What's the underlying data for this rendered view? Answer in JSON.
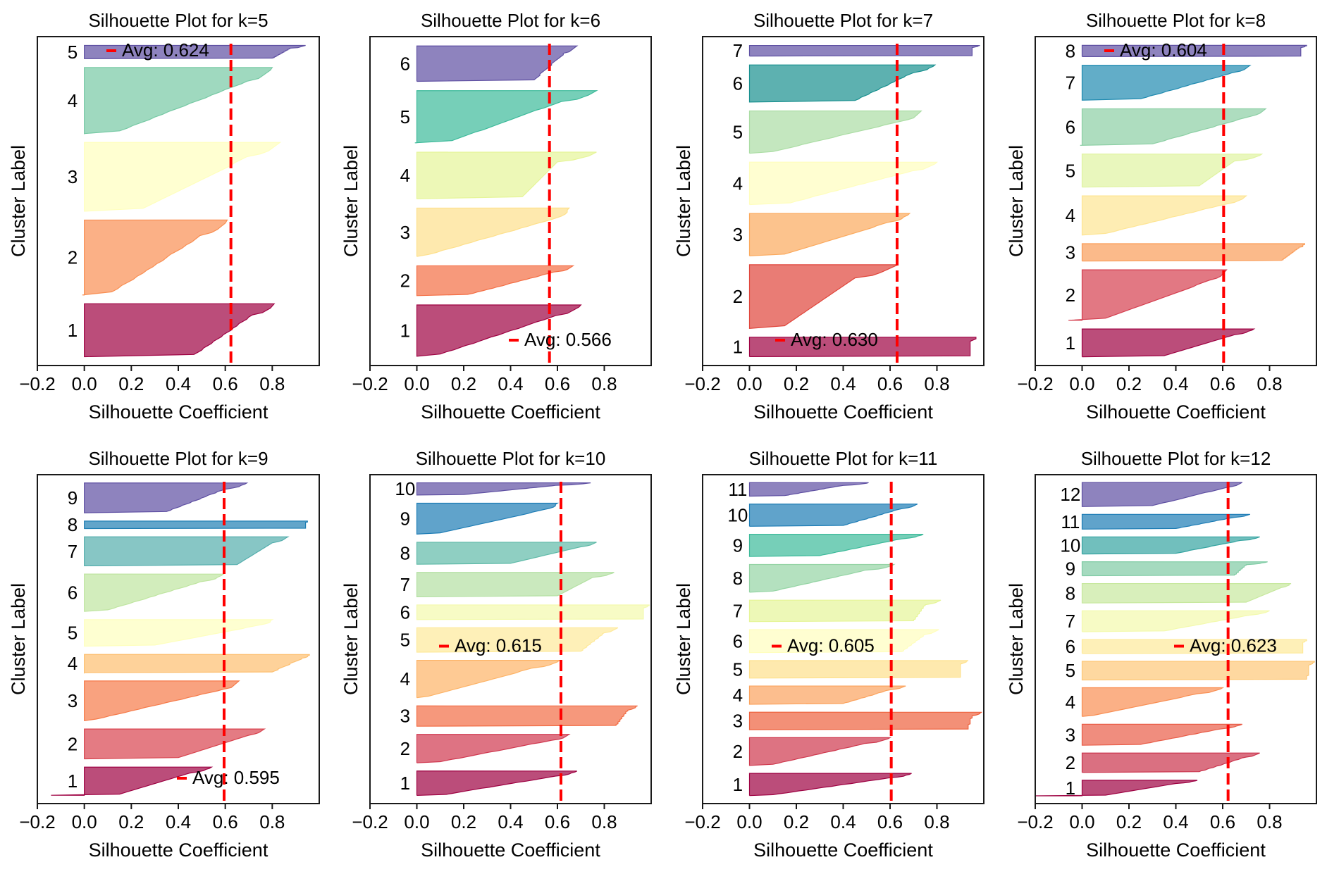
{
  "figure": {
    "shared_xlabel": "Silhouette Coefficient",
    "shared_ylabel": "Cluster Label",
    "avg_line_color": "#ff0000"
  },
  "chart_data": [
    {
      "type": "area",
      "title": "Silhouette Plot for k=5",
      "xlabel": "Silhouette Coefficient",
      "ylabel": "Cluster Label",
      "xlim": [
        -0.2,
        1.0
      ],
      "xticks": [
        "−0.2",
        "0.0",
        "0.2",
        "0.4",
        "0.6",
        "0.8"
      ],
      "xtick_values": [
        -0.2,
        0.0,
        0.2,
        0.4,
        0.6,
        0.8
      ],
      "avg": 0.624,
      "legend_label": "Avg: 0.624",
      "legend_loc": "upper center",
      "clusters": [
        {
          "label": "1",
          "size": 60,
          "max": 0.81,
          "knee": 0.72,
          "low": 0.47,
          "min": 0.0,
          "color": "#9e0142"
        },
        {
          "label": "2",
          "size": 85,
          "max": 0.61,
          "knee": 0.5,
          "low": 0.12,
          "min": -0.01,
          "color": "#f98e52"
        },
        {
          "label": "3",
          "size": 78,
          "max": 0.83,
          "knee": 0.7,
          "low": 0.25,
          "min": 0.0,
          "color": "#ffffbe"
        },
        {
          "label": "4",
          "size": 75,
          "max": 0.8,
          "knee": 0.7,
          "low": 0.15,
          "min": 0.0,
          "color": "#76c9a4"
        },
        {
          "label": "5",
          "size": 15,
          "max": 0.94,
          "knee": 0.88,
          "low": 0.8,
          "min": 0.0,
          "color": "#5e4fa2"
        }
      ]
    },
    {
      "type": "area",
      "title": "Silhouette Plot for k=6",
      "xlabel": "Silhouette Coefficient",
      "ylabel": "Cluster Label",
      "xlim": [
        -0.2,
        1.0
      ],
      "xticks": [
        "−0.2",
        "0.0",
        "0.2",
        "0.4",
        "0.6",
        "0.8"
      ],
      "xtick_values": [
        -0.2,
        0.0,
        0.2,
        0.4,
        0.6,
        0.8
      ],
      "avg": 0.566,
      "legend_label": "Avg: 0.566",
      "legend_loc": "lower right",
      "clusters": [
        {
          "label": "1",
          "size": 55,
          "max": 0.7,
          "knee": 0.6,
          "low": 0.1,
          "min": 0.0,
          "color": "#9e0142"
        },
        {
          "label": "2",
          "size": 32,
          "max": 0.67,
          "knee": 0.59,
          "low": 0.22,
          "min": 0.0,
          "color": "#f46d43"
        },
        {
          "label": "3",
          "size": 52,
          "max": 0.65,
          "knee": 0.6,
          "low": 0.05,
          "min": 0.0,
          "color": "#fee08b"
        },
        {
          "label": "4",
          "size": 50,
          "max": 0.77,
          "knee": 0.6,
          "low": 0.45,
          "min": 0.0,
          "color": "#e6f598"
        },
        {
          "label": "5",
          "size": 56,
          "max": 0.77,
          "knee": 0.62,
          "low": 0.15,
          "min": -0.01,
          "color": "#3cba9a"
        },
        {
          "label": "6",
          "size": 38,
          "max": 0.68,
          "knee": 0.63,
          "low": 0.5,
          "min": 0.0,
          "color": "#5e4fa2"
        }
      ]
    },
    {
      "type": "area",
      "title": "Silhouette Plot for k=7",
      "xlabel": "Silhouette Coefficient",
      "ylabel": "Cluster Label",
      "xlim": [
        -0.2,
        1.0
      ],
      "xticks": [
        "−0.2",
        "0.0",
        "0.2",
        "0.4",
        "0.6",
        "0.8"
      ],
      "xtick_values": [
        -0.2,
        0.0,
        0.2,
        0.4,
        0.6,
        0.8
      ],
      "avg": 0.63,
      "legend_label": "Avg: 0.630",
      "legend_loc": "lower center",
      "clusters": [
        {
          "label": "1",
          "size": 22,
          "max": 0.97,
          "knee": 0.94,
          "low": 0.94,
          "min": 0.0,
          "color": "#9e0142"
        },
        {
          "label": "2",
          "size": 72,
          "max": 0.63,
          "knee": 0.45,
          "low": 0.15,
          "min": 0.0,
          "color": "#e0453b"
        },
        {
          "label": "3",
          "size": 48,
          "max": 0.68,
          "knee": 0.6,
          "low": 0.15,
          "min": 0.0,
          "color": "#fba95c"
        },
        {
          "label": "4",
          "size": 48,
          "max": 0.8,
          "knee": 0.7,
          "low": 0.17,
          "min": 0.0,
          "color": "#fffebe"
        },
        {
          "label": "5",
          "size": 48,
          "max": 0.73,
          "knee": 0.68,
          "low": 0.1,
          "min": 0.0,
          "color": "#abdda4"
        },
        {
          "label": "6",
          "size": 42,
          "max": 0.79,
          "knee": 0.7,
          "low": 0.45,
          "min": 0.0,
          "color": "#18908f"
        },
        {
          "label": "7",
          "size": 12,
          "max": 0.98,
          "knee": 0.95,
          "low": 0.95,
          "min": 0.0,
          "color": "#5e4fa2"
        }
      ]
    },
    {
      "type": "area",
      "title": "Silhouette Plot for k=8",
      "xlabel": "Silhouette Coefficient",
      "ylabel": "Cluster Label",
      "xlim": [
        -0.2,
        1.0
      ],
      "xticks": [
        "−0.2",
        "0.0",
        "0.2",
        "0.4",
        "0.6",
        "0.8"
      ],
      "xtick_values": [
        -0.2,
        0.0,
        0.2,
        0.4,
        0.6,
        0.8
      ],
      "avg": 0.604,
      "legend_label": "Avg: 0.604",
      "legend_loc": "upper center",
      "clusters": [
        {
          "label": "1",
          "size": 32,
          "max": 0.73,
          "knee": 0.65,
          "low": 0.35,
          "min": 0.0,
          "color": "#9e0142"
        },
        {
          "label": "2",
          "size": 58,
          "max": 0.62,
          "knee": 0.55,
          "low": 0.1,
          "min": -0.06,
          "color": "#d53e4f"
        },
        {
          "label": "3",
          "size": 20,
          "max": 0.95,
          "knee": 0.93,
          "low": 0.85,
          "min": 0.0,
          "color": "#fa9c58"
        },
        {
          "label": "4",
          "size": 45,
          "max": 0.7,
          "knee": 0.62,
          "low": 0.1,
          "min": 0.0,
          "color": "#fee593"
        },
        {
          "label": "5",
          "size": 38,
          "max": 0.77,
          "knee": 0.65,
          "low": 0.5,
          "min": 0.0,
          "color": "#e0f3a1"
        },
        {
          "label": "6",
          "size": 42,
          "max": 0.78,
          "knee": 0.72,
          "low": 0.3,
          "min": -0.01,
          "color": "#8ccfa4"
        },
        {
          "label": "7",
          "size": 40,
          "max": 0.72,
          "knee": 0.65,
          "low": 0.25,
          "min": 0.0,
          "color": "#1f8ab0"
        },
        {
          "label": "8",
          "size": 13,
          "max": 0.96,
          "knee": 0.93,
          "low": 0.93,
          "min": 0.0,
          "color": "#5e4fa2"
        }
      ]
    },
    {
      "type": "area",
      "title": "Silhouette Plot for k=9",
      "xlabel": "Silhouette Coefficient",
      "ylabel": "Cluster Label",
      "xlim": [
        -0.2,
        1.0
      ],
      "xticks": [
        "−0.2",
        "0.0",
        "0.2",
        "0.4",
        "0.6",
        "0.8"
      ],
      "xtick_values": [
        -0.2,
        0.0,
        0.2,
        0.4,
        0.6,
        0.8
      ],
      "avg": 0.595,
      "legend_label": "Avg: 0.595",
      "legend_loc": "lower right",
      "clusters": [
        {
          "label": "1",
          "size": 34,
          "max": 0.54,
          "knee": 0.45,
          "low": 0.15,
          "min": -0.14,
          "color": "#9e0142"
        },
        {
          "label": "2",
          "size": 36,
          "max": 0.77,
          "knee": 0.7,
          "low": 0.4,
          "min": 0.0,
          "color": "#d8434e"
        },
        {
          "label": "3",
          "size": 48,
          "max": 0.66,
          "knee": 0.6,
          "low": 0.05,
          "min": 0.0,
          "color": "#f67a49"
        },
        {
          "label": "4",
          "size": 22,
          "max": 0.96,
          "knee": 0.93,
          "low": 0.8,
          "min": 0.0,
          "color": "#fdbf6f"
        },
        {
          "label": "5",
          "size": 32,
          "max": 0.8,
          "knee": 0.75,
          "low": 0.3,
          "min": 0.0,
          "color": "#feffbe"
        },
        {
          "label": "6",
          "size": 45,
          "max": 0.59,
          "knee": 0.5,
          "low": 0.1,
          "min": 0.0,
          "color": "#bfe5a0"
        },
        {
          "label": "7",
          "size": 35,
          "max": 0.87,
          "knee": 0.8,
          "low": 0.65,
          "min": 0.0,
          "color": "#54aead"
        },
        {
          "label": "8",
          "size": 9,
          "max": 0.95,
          "knee": 0.94,
          "low": 0.94,
          "min": 0.0,
          "color": "#1f7fb4"
        },
        {
          "label": "9",
          "size": 36,
          "max": 0.69,
          "knee": 0.6,
          "low": 0.35,
          "min": 0.0,
          "color": "#5e4fa2"
        }
      ]
    },
    {
      "type": "area",
      "title": "Silhouette Plot for k=10",
      "xlabel": "Silhouette Coefficient",
      "ylabel": "Cluster Label",
      "xlim": [
        -0.2,
        1.0
      ],
      "xticks": [
        "−0.2",
        "0.0",
        "0.2",
        "0.4",
        "0.6",
        "0.8"
      ],
      "xtick_values": [
        -0.2,
        0.0,
        0.2,
        0.4,
        0.6,
        0.8
      ],
      "avg": 0.615,
      "legend_label": "Avg: 0.615",
      "legend_loc": "center",
      "clusters": [
        {
          "label": "1",
          "size": 30,
          "max": 0.68,
          "knee": 0.6,
          "low": 0.12,
          "min": 0.0,
          "color": "#9e0142"
        },
        {
          "label": "2",
          "size": 35,
          "max": 0.65,
          "knee": 0.58,
          "low": 0.1,
          "min": 0.0,
          "color": "#d0374f"
        },
        {
          "label": "3",
          "size": 25,
          "max": 0.94,
          "knee": 0.9,
          "low": 0.85,
          "min": 0.0,
          "color": "#f26c44"
        },
        {
          "label": "4",
          "size": 46,
          "max": 0.61,
          "knee": 0.5,
          "low": 0.05,
          "min": 0.0,
          "color": "#fdb366"
        },
        {
          "label": "5",
          "size": 30,
          "max": 0.86,
          "knee": 0.8,
          "low": 0.7,
          "min": 0.0,
          "color": "#fee99a"
        },
        {
          "label": "6",
          "size": 18,
          "max": 0.99,
          "knee": 0.97,
          "low": 0.97,
          "min": 0.0,
          "color": "#f3faad"
        },
        {
          "label": "7",
          "size": 30,
          "max": 0.84,
          "knee": 0.75,
          "low": 0.6,
          "min": 0.0,
          "color": "#b3e0a2"
        },
        {
          "label": "8",
          "size": 27,
          "max": 0.77,
          "knee": 0.7,
          "low": 0.4,
          "min": 0.0,
          "color": "#5fbaa8"
        },
        {
          "label": "9",
          "size": 38,
          "max": 0.6,
          "knee": 0.55,
          "low": 0.1,
          "min": 0.0,
          "color": "#1c7cb5"
        },
        {
          "label": "10",
          "size": 15,
          "max": 0.74,
          "knee": 0.6,
          "low": 0.2,
          "min": 0.0,
          "color": "#5e4fa2"
        }
      ]
    },
    {
      "type": "area",
      "title": "Silhouette Plot for k=11",
      "xlabel": "Silhouette Coefficient",
      "ylabel": "Cluster Label",
      "xlim": [
        -0.2,
        1.0
      ],
      "xticks": [
        "−0.2",
        "0.0",
        "0.2",
        "0.4",
        "0.6",
        "0.8"
      ],
      "xtick_values": [
        -0.2,
        0.0,
        0.2,
        0.4,
        0.6,
        0.8
      ],
      "avg": 0.605,
      "legend_label": "Avg: 0.605",
      "legend_loc": "center",
      "clusters": [
        {
          "label": "1",
          "size": 28,
          "max": 0.69,
          "knee": 0.6,
          "low": 0.1,
          "min": 0.0,
          "color": "#9e0142"
        },
        {
          "label": "2",
          "size": 35,
          "max": 0.6,
          "knee": 0.5,
          "low": 0.1,
          "min": 0.0,
          "color": "#cf384d"
        },
        {
          "label": "3",
          "size": 22,
          "max": 0.99,
          "knee": 0.95,
          "low": 0.93,
          "min": 0.0,
          "color": "#ee613d"
        },
        {
          "label": "4",
          "size": 23,
          "max": 0.67,
          "knee": 0.6,
          "low": 0.4,
          "min": 0.0,
          "color": "#fba35e"
        },
        {
          "label": "5",
          "size": 22,
          "max": 0.93,
          "knee": 0.9,
          "low": 0.9,
          "min": 0.0,
          "color": "#fee08b"
        },
        {
          "label": "6",
          "size": 29,
          "max": 0.81,
          "knee": 0.75,
          "low": 0.65,
          "min": 0.0,
          "color": "#fffebe"
        },
        {
          "label": "7",
          "size": 27,
          "max": 0.82,
          "knee": 0.75,
          "low": 0.7,
          "min": 0.0,
          "color": "#e6f598"
        },
        {
          "label": "8",
          "size": 35,
          "max": 0.62,
          "knee": 0.5,
          "low": 0.1,
          "min": 0.0,
          "color": "#94d4a4"
        },
        {
          "label": "9",
          "size": 28,
          "max": 0.74,
          "knee": 0.65,
          "low": 0.3,
          "min": 0.0,
          "color": "#3cba9a"
        },
        {
          "label": "10",
          "size": 28,
          "max": 0.72,
          "knee": 0.65,
          "low": 0.4,
          "min": 0.0,
          "color": "#1c7cb5"
        },
        {
          "label": "11",
          "size": 17,
          "max": 0.51,
          "knee": 0.4,
          "low": 0.15,
          "min": 0.0,
          "color": "#5e4fa2"
        }
      ]
    },
    {
      "type": "area",
      "title": "Silhouette Plot for k=12",
      "xlabel": "Silhouette Coefficient",
      "ylabel": "Cluster Label",
      "xlim": [
        -0.2,
        1.0
      ],
      "xticks": [
        "−0.2",
        "0.0",
        "0.2",
        "0.4",
        "0.6",
        "0.8"
      ],
      "xtick_values": [
        -0.2,
        0.0,
        0.2,
        0.4,
        0.6,
        0.8
      ],
      "avg": 0.623,
      "legend_label": "Avg: 0.623",
      "legend_loc": "center right",
      "clusters": [
        {
          "label": "1",
          "size": 20,
          "max": 0.49,
          "knee": 0.4,
          "low": 0.1,
          "min": -0.2,
          "color": "#9e0142"
        },
        {
          "label": "2",
          "size": 25,
          "max": 0.76,
          "knee": 0.7,
          "low": 0.5,
          "min": 0.0,
          "color": "#cb334c"
        },
        {
          "label": "3",
          "size": 27,
          "max": 0.68,
          "knee": 0.6,
          "low": 0.25,
          "min": 0.0,
          "color": "#e95c47"
        },
        {
          "label": "4",
          "size": 37,
          "max": 0.6,
          "knee": 0.5,
          "low": 0.05,
          "min": 0.0,
          "color": "#f98e52"
        },
        {
          "label": "5",
          "size": 24,
          "max": 0.99,
          "knee": 0.97,
          "low": 0.96,
          "min": 0.0,
          "color": "#fdc877"
        },
        {
          "label": "6",
          "size": 18,
          "max": 0.96,
          "knee": 0.94,
          "low": 0.94,
          "min": 0.0,
          "color": "#fee99a"
        },
        {
          "label": "7",
          "size": 27,
          "max": 0.8,
          "knee": 0.72,
          "low": 0.35,
          "min": 0.0,
          "color": "#f3faad"
        },
        {
          "label": "8",
          "size": 25,
          "max": 0.89,
          "knee": 0.85,
          "low": 0.7,
          "min": 0.0,
          "color": "#c7e89e"
        },
        {
          "label": "9",
          "size": 18,
          "max": 0.79,
          "knee": 0.7,
          "low": 0.65,
          "min": 0.0,
          "color": "#7fcba4"
        },
        {
          "label": "10",
          "size": 22,
          "max": 0.76,
          "knee": 0.68,
          "low": 0.4,
          "min": 0.0,
          "color": "#35a4a1"
        },
        {
          "label": "11",
          "size": 19,
          "max": 0.72,
          "knee": 0.65,
          "low": 0.4,
          "min": 0.0,
          "color": "#1c7cb5"
        },
        {
          "label": "12",
          "size": 31,
          "max": 0.68,
          "knee": 0.62,
          "low": 0.3,
          "min": 0.0,
          "color": "#5e4fa2"
        }
      ]
    }
  ]
}
